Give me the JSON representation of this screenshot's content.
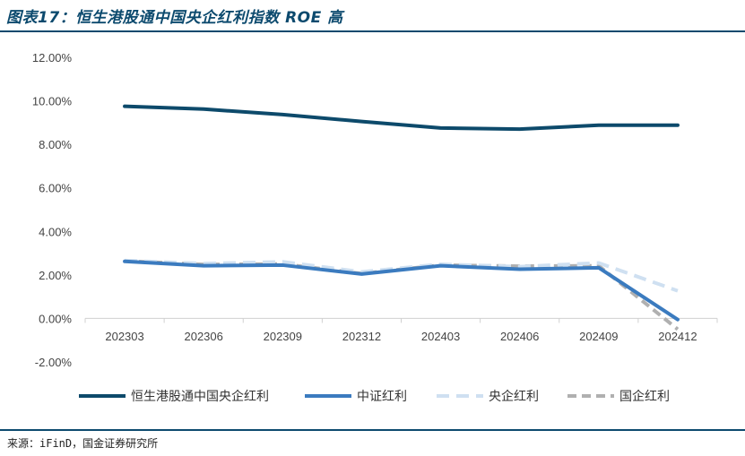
{
  "title": "图表17：恒生港股通中国央企红利指数 ROE 高",
  "source": "来源：iFinD，国金证券研究所",
  "colors": {
    "rule": "#0c4a6e",
    "series": [
      "#0d4a6b",
      "#3b7bbf",
      "#cfe0f1",
      "#b0b0b0"
    ]
  },
  "chart_data": {
    "type": "line",
    "categories": [
      "202303",
      "202306",
      "202309",
      "202312",
      "202403",
      "202406",
      "202409",
      "202412"
    ],
    "y_ticks": [
      "12.00%",
      "10.00%",
      "8.00%",
      "6.00%",
      "4.00%",
      "2.00%",
      "0.00%",
      "-2.00%"
    ],
    "ylim": [
      -2,
      12
    ],
    "y_unit": "%",
    "grid": false,
    "legend_position": "bottom",
    "series": [
      {
        "name": "恒生港股通中国央企红利",
        "style": "solid",
        "values": [
          9.75,
          9.62,
          9.37,
          9.05,
          8.75,
          8.7,
          8.88,
          8.88
        ]
      },
      {
        "name": "中证红利",
        "style": "solid",
        "values": [
          2.62,
          2.42,
          2.45,
          2.04,
          2.42,
          2.26,
          2.33,
          -0.05
        ]
      },
      {
        "name": "央企红利",
        "style": "dash",
        "values": [
          2.66,
          2.52,
          2.6,
          2.14,
          2.49,
          2.38,
          2.55,
          1.27
        ]
      },
      {
        "name": "国企红利",
        "style": "dash",
        "values": [
          2.64,
          2.48,
          2.5,
          2.06,
          2.45,
          2.4,
          2.42,
          -0.5
        ]
      }
    ]
  }
}
